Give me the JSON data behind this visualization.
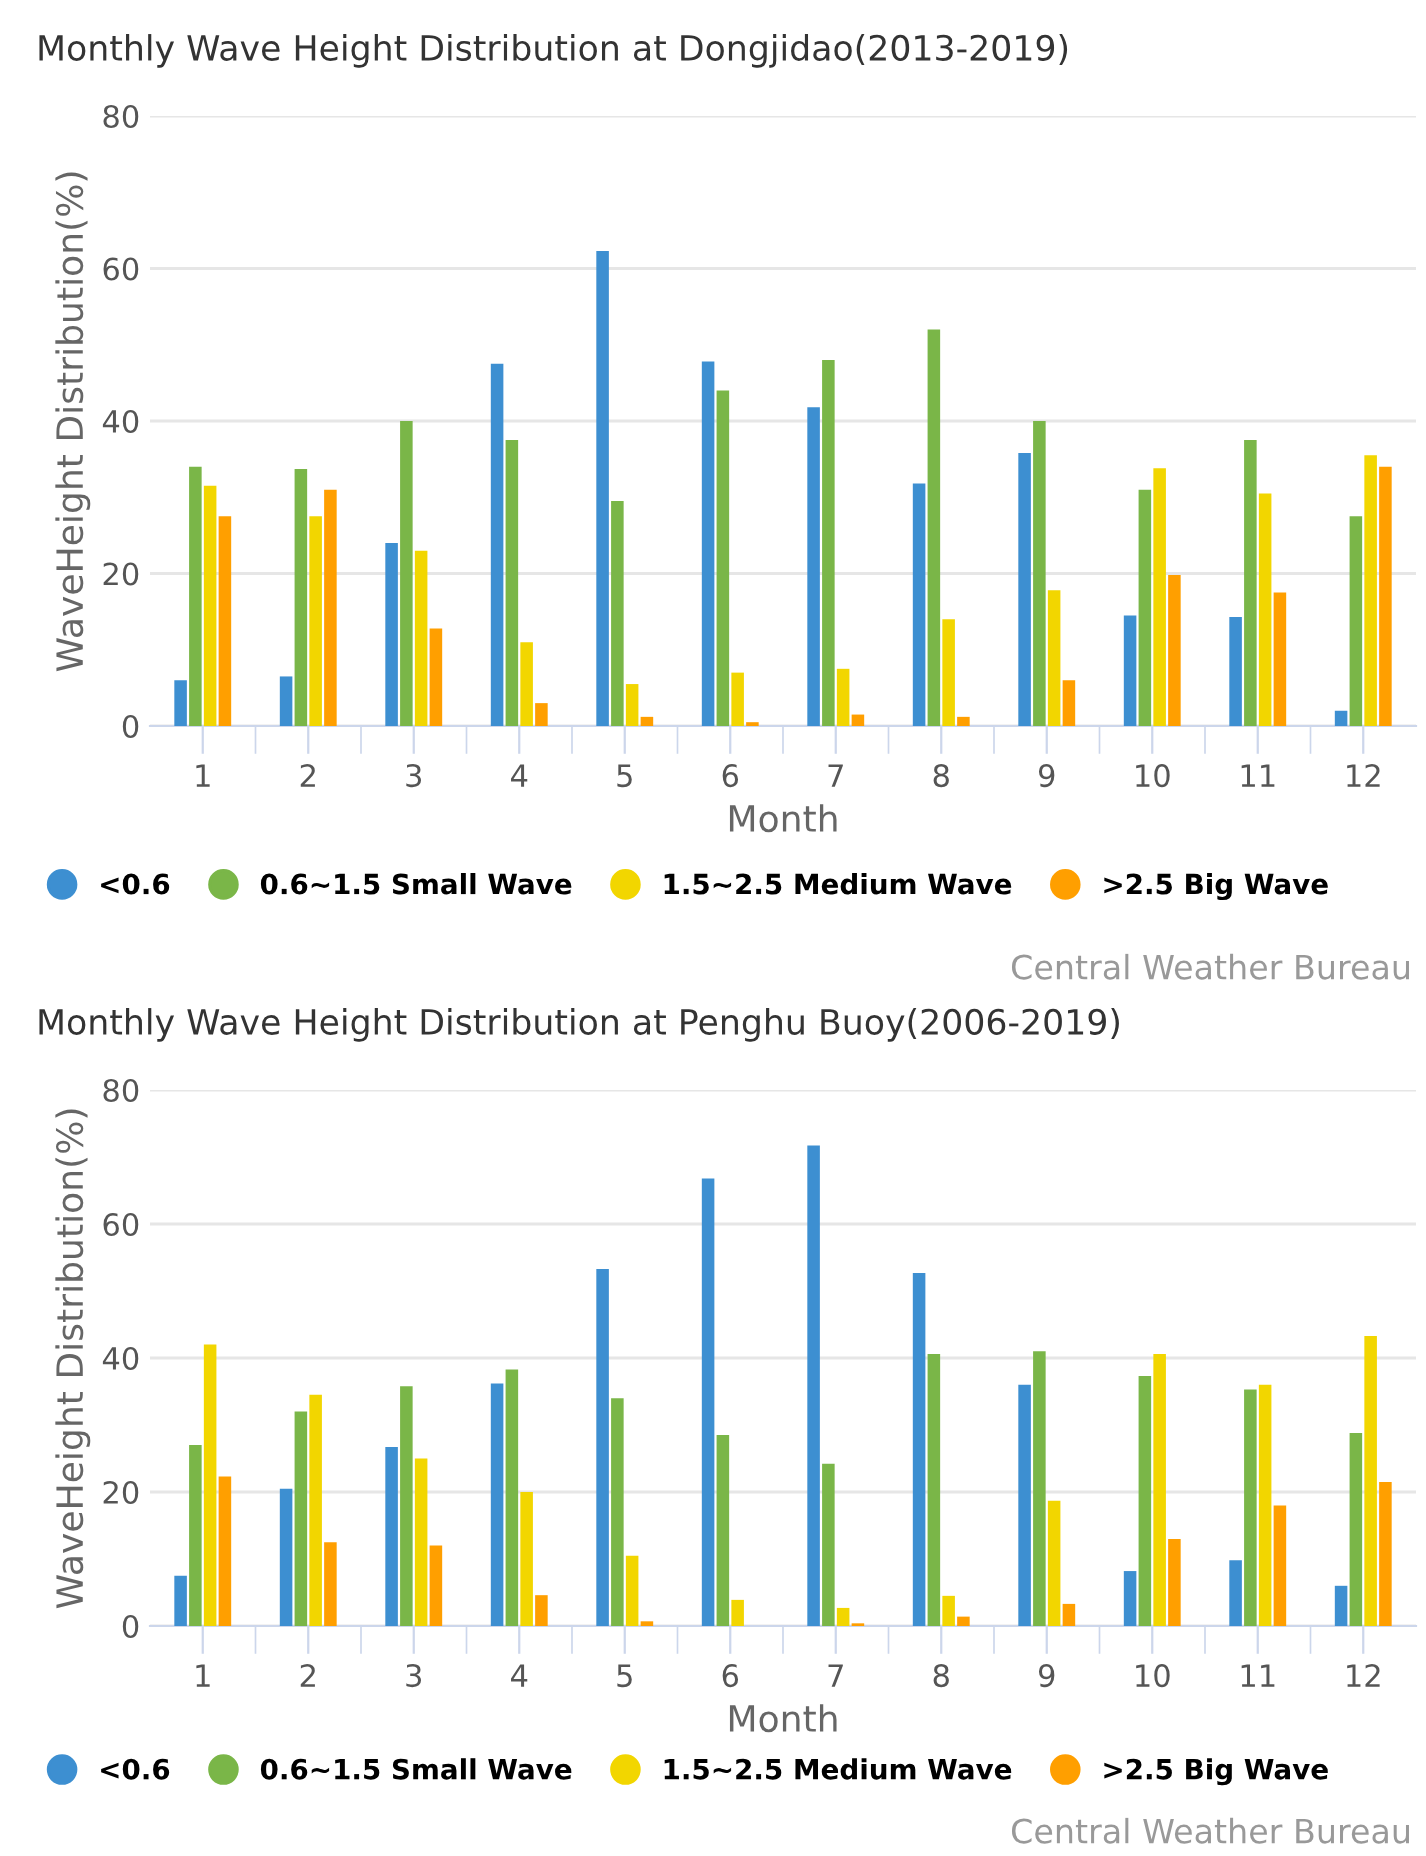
{
  "chart_data": [
    {
      "type": "bar",
      "title": "Monthly Wave Height Distribution at Dongjidao(2013-2019)",
      "xlabel": "Month",
      "ylabel": "WaveHeight Distribution(%)",
      "categories": [
        "1",
        "2",
        "3",
        "4",
        "5",
        "6",
        "7",
        "8",
        "9",
        "10",
        "11",
        "12"
      ],
      "series": [
        {
          "name": "<0.6",
          "color": "#3d8fd1",
          "values": [
            6,
            6.5,
            24,
            47.5,
            62.3,
            47.8,
            41.8,
            31.8,
            35.8,
            14.5,
            14.3,
            2
          ]
        },
        {
          "name": "0.6~1.5 Small Wave",
          "color": "#7ab648",
          "values": [
            34,
            33.7,
            40,
            37.5,
            29.5,
            44,
            48,
            52,
            40,
            31,
            37.5,
            27.5
          ]
        },
        {
          "name": "1.5~2.5 Medium Wave",
          "color": "#f2d600",
          "values": [
            31.5,
            27.5,
            23,
            11,
            5.5,
            7,
            7.5,
            14,
            17.8,
            33.8,
            30.5,
            35.5
          ]
        },
        {
          "name": ">2.5 Big Wave",
          "color": "#ff9f00",
          "values": [
            27.5,
            31,
            12.8,
            3,
            1.2,
            0.5,
            1.5,
            1.2,
            6,
            19.8,
            17.5,
            34
          ]
        }
      ],
      "ylim": [
        0,
        80
      ],
      "yticks": [
        0,
        20,
        40,
        60,
        80
      ],
      "grid": "y",
      "legend": "bottom",
      "marker": "circle",
      "annotations": [
        "Central Weather Bureau"
      ]
    },
    {
      "type": "bar",
      "title": "Monthly Wave Height Distribution at Penghu Buoy(2006-2019)",
      "xlabel": "Month",
      "ylabel": "WaveHeight Distribution(%)",
      "categories": [
        "1",
        "2",
        "3",
        "4",
        "5",
        "6",
        "7",
        "8",
        "9",
        "10",
        "11",
        "12"
      ],
      "series": [
        {
          "name": "<0.6",
          "color": "#3d8fd1",
          "values": [
            7.5,
            20.5,
            26.7,
            36.2,
            53.3,
            66.8,
            71.7,
            52.7,
            36,
            8.2,
            9.8,
            6
          ]
        },
        {
          "name": "0.6~1.5 Small Wave",
          "color": "#7ab648",
          "values": [
            27,
            32,
            35.8,
            38.3,
            34,
            28.5,
            24.2,
            40.6,
            41,
            37.3,
            35.3,
            28.8
          ]
        },
        {
          "name": "1.5~2.5 Medium Wave",
          "color": "#f2d600",
          "values": [
            42,
            34.5,
            25,
            20,
            10.5,
            3.9,
            2.7,
            4.5,
            18.7,
            40.6,
            36,
            43.3
          ]
        },
        {
          "name": ">2.5 Big Wave",
          "color": "#ff9f00",
          "values": [
            22.3,
            12.5,
            12,
            4.6,
            0.7,
            null,
            0.4,
            1.4,
            3.3,
            13,
            18,
            21.5
          ]
        }
      ],
      "ylim": [
        0,
        80
      ],
      "yticks": [
        0,
        20,
        40,
        60,
        80
      ],
      "grid": "y",
      "legend": "bottom",
      "marker": "circle",
      "annotations": [
        "Central Weather Bureau"
      ]
    }
  ]
}
